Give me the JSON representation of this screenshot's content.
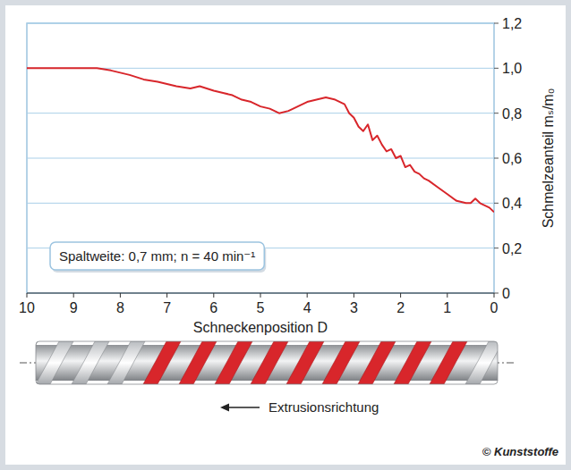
{
  "chart_data": {
    "type": "line",
    "x_label": "Schneckenposition D",
    "y_label": "Schmelzeanteil mₛ/m₀",
    "annotations": [
      "Spaltweite: 0,7 mm; n = 40 min⁻¹",
      "Extrusionsrichtung",
      "© Kunststoffe"
    ],
    "x": [
      10,
      9.5,
      9,
      8.5,
      8.2,
      8,
      7.8,
      7.5,
      7.2,
      7,
      6.8,
      6.5,
      6.3,
      6,
      5.8,
      5.6,
      5.4,
      5.2,
      5,
      4.8,
      4.6,
      4.4,
      4.2,
      4,
      3.8,
      3.6,
      3.4,
      3.2,
      3.1,
      3,
      2.9,
      2.8,
      2.7,
      2.6,
      2.5,
      2.4,
      2.3,
      2.2,
      2.1,
      2,
      1.9,
      1.8,
      1.7,
      1.6,
      1.5,
      1.4,
      1.2,
      1,
      0.8,
      0.6,
      0.5,
      0.4,
      0.3,
      0.2,
      0.1,
      0
    ],
    "values": [
      1.0,
      1.0,
      1.0,
      1.0,
      0.99,
      0.98,
      0.97,
      0.95,
      0.94,
      0.93,
      0.92,
      0.91,
      0.92,
      0.9,
      0.89,
      0.88,
      0.86,
      0.85,
      0.83,
      0.82,
      0.8,
      0.81,
      0.83,
      0.85,
      0.86,
      0.87,
      0.86,
      0.84,
      0.8,
      0.78,
      0.74,
      0.72,
      0.75,
      0.68,
      0.7,
      0.66,
      0.63,
      0.64,
      0.6,
      0.61,
      0.56,
      0.57,
      0.54,
      0.53,
      0.51,
      0.5,
      0.47,
      0.44,
      0.41,
      0.4,
      0.4,
      0.42,
      0.4,
      0.39,
      0.38,
      0.36
    ],
    "color": "#d8262b",
    "xlim": [
      10,
      0
    ],
    "xticks": [
      10,
      9,
      8,
      7,
      6,
      5,
      4,
      3,
      2,
      1,
      0
    ],
    "ylim": [
      0,
      1.2
    ],
    "yticks": [
      0,
      {
        "value": 0.2,
        "label": "0,2"
      },
      {
        "value": 0.4,
        "label": "0,4"
      },
      {
        "value": 0.6,
        "label": "0,6"
      },
      {
        "value": 0.8,
        "label": "0,8"
      },
      {
        "value": 1.0,
        "label": "1,0"
      },
      {
        "value": 1.2,
        "label": "1,2"
      }
    ],
    "grid": true
  }
}
